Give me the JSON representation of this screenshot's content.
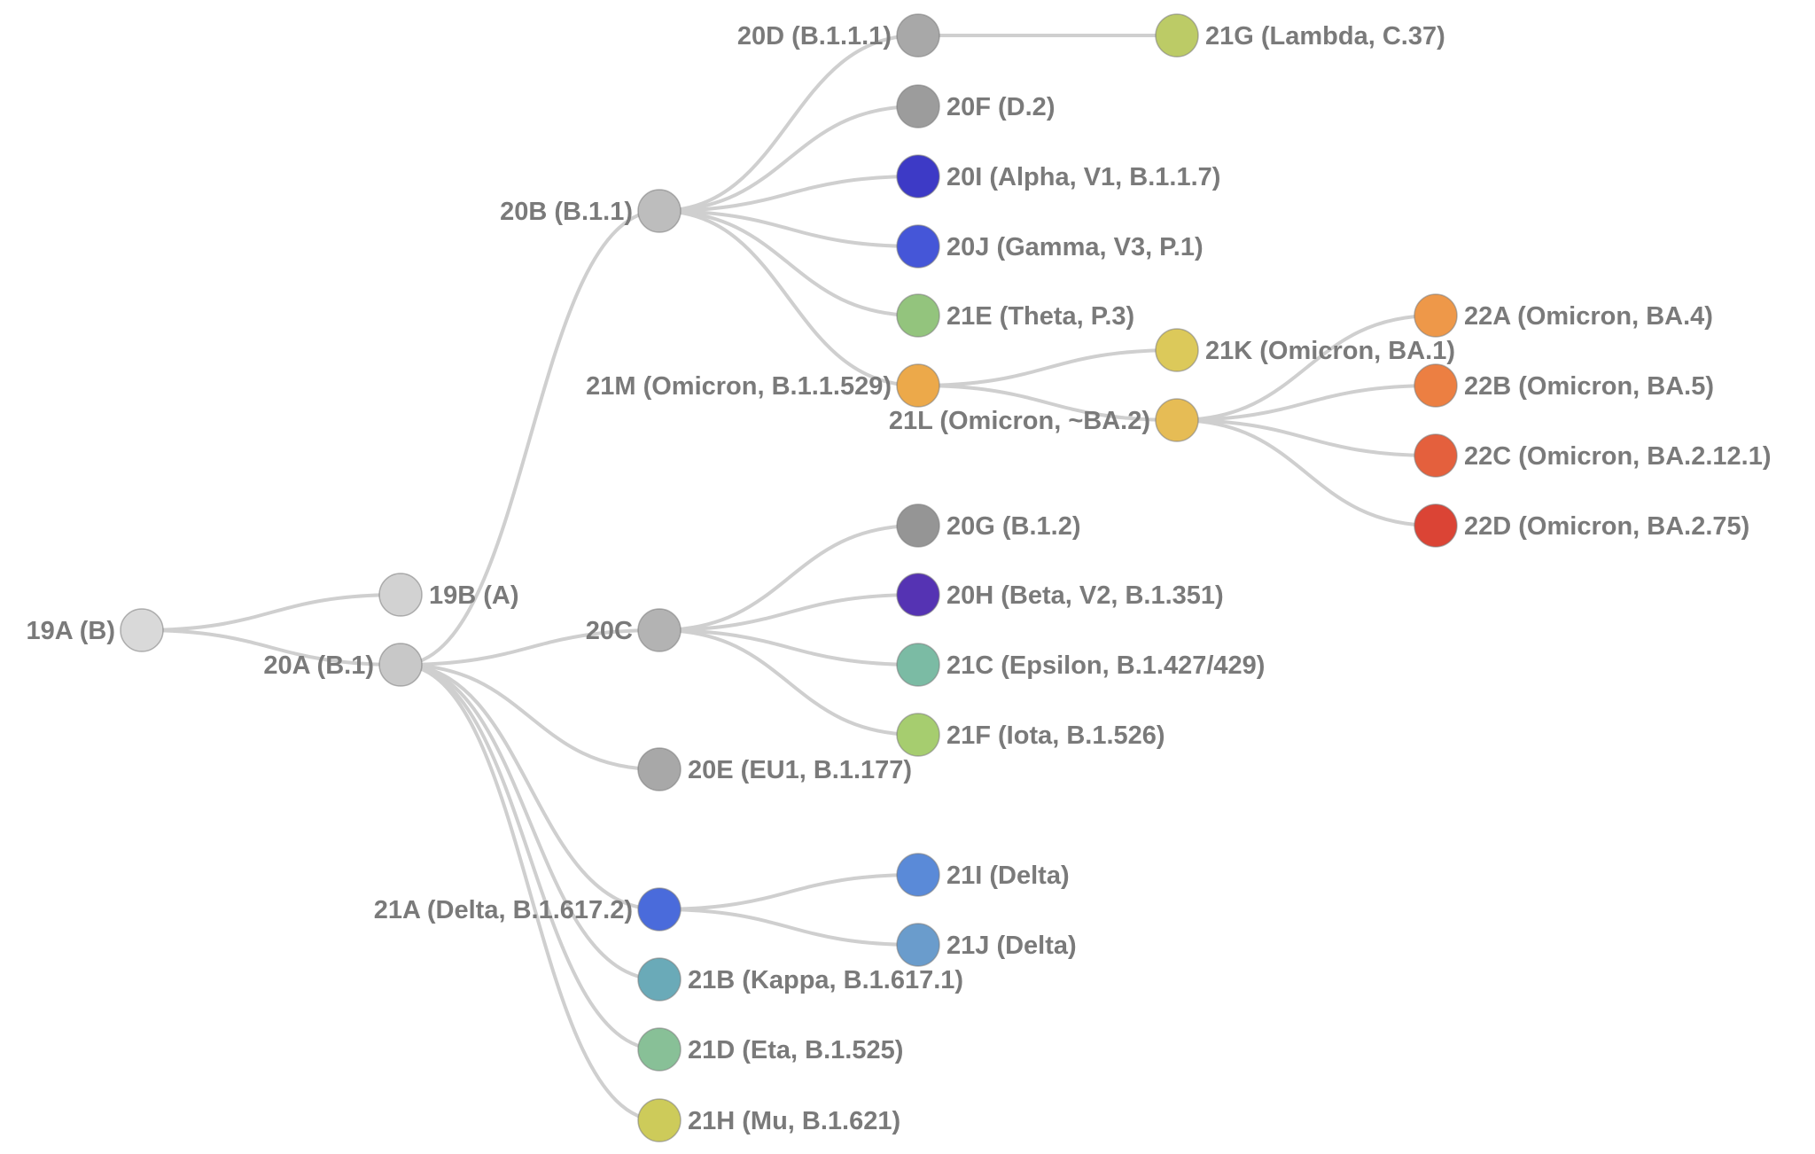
{
  "diagram": {
    "type": "clade-tree",
    "edge_color": "#cfcfcf",
    "label_color": "#7a7a7a",
    "nodes": [
      {
        "id": "19A",
        "label": "19A (B)",
        "color": "#d9d9d9",
        "parent": null
      },
      {
        "id": "19B",
        "label": "19B (A)",
        "color": "#d2d2d2",
        "parent": "19A"
      },
      {
        "id": "20A",
        "label": "20A (B.1)",
        "color": "#c8c8c8",
        "parent": "19A"
      },
      {
        "id": "20B",
        "label": "20B (B.1.1)",
        "color": "#bdbdbd",
        "parent": "20A"
      },
      {
        "id": "20C",
        "label": "20C",
        "color": "#b3b3b3",
        "parent": "20A"
      },
      {
        "id": "20E",
        "label": "20E (EU1, B.1.177)",
        "color": "#a8a8a8",
        "parent": "20A"
      },
      {
        "id": "21A",
        "label": "21A (Delta, B.1.617.2)",
        "color": "#4a6bdb",
        "parent": "20A"
      },
      {
        "id": "21B",
        "label": "21B (Kappa, B.1.617.1)",
        "color": "#6aaab8",
        "parent": "20A"
      },
      {
        "id": "21D",
        "label": "21D (Eta, B.1.525)",
        "color": "#88c097",
        "parent": "20A"
      },
      {
        "id": "21H",
        "label": "21H (Mu, B.1.621)",
        "color": "#cdcb5a",
        "parent": "20A"
      },
      {
        "id": "20D",
        "label": "20D (B.1.1.1)",
        "color": "#a8a8a8",
        "parent": "20B"
      },
      {
        "id": "20F",
        "label": "20F (D.2)",
        "color": "#9c9c9c",
        "parent": "20B"
      },
      {
        "id": "20I",
        "label": "20I (Alpha, V1, B.1.1.7)",
        "color": "#3d3ac6",
        "parent": "20B"
      },
      {
        "id": "20J",
        "label": "20J (Gamma, V3, P.1)",
        "color": "#4556d8",
        "parent": "20B"
      },
      {
        "id": "21E",
        "label": "21E (Theta, P.3)",
        "color": "#93c47d",
        "parent": "20B"
      },
      {
        "id": "21M",
        "label": "21M (Omicron, B.1.1.529)",
        "color": "#eca94a",
        "parent": "20B"
      },
      {
        "id": "21G",
        "label": "21G (Lambda, C.37)",
        "color": "#bccb66",
        "parent": "20D"
      },
      {
        "id": "21K",
        "label": "21K (Omicron, BA.1)",
        "color": "#dcc95a",
        "parent": "21M"
      },
      {
        "id": "21L",
        "label": "21L (Omicron, ~BA.2)",
        "color": "#e6bc55",
        "parent": "21M"
      },
      {
        "id": "22A",
        "label": "22A (Omicron, BA.4)",
        "color": "#ee9849",
        "parent": "21L"
      },
      {
        "id": "22B",
        "label": "22B (Omicron, BA.5)",
        "color": "#ec7f42",
        "parent": "21L"
      },
      {
        "id": "22C",
        "label": "22C (Omicron, BA.2.12.1)",
        "color": "#e4603d",
        "parent": "21L"
      },
      {
        "id": "22D",
        "label": "22D (Omicron, BA.2.75)",
        "color": "#db4435",
        "parent": "21L"
      },
      {
        "id": "20G",
        "label": "20G (B.1.2)",
        "color": "#959595",
        "parent": "20C"
      },
      {
        "id": "20H",
        "label": "20H (Beta, V2, B.1.351)",
        "color": "#5533b3",
        "parent": "20C"
      },
      {
        "id": "21C",
        "label": "21C (Epsilon, B.1.427/429)",
        "color": "#7bbba4",
        "parent": "20C"
      },
      {
        "id": "21F",
        "label": "21F (Iota, B.1.526)",
        "color": "#a6cd6f",
        "parent": "20C"
      },
      {
        "id": "21I",
        "label": "21I (Delta)",
        "color": "#5a8ad8",
        "parent": "21A"
      },
      {
        "id": "21J",
        "label": "21J (Delta)",
        "color": "#6a9ccc",
        "parent": "21A"
      }
    ]
  }
}
